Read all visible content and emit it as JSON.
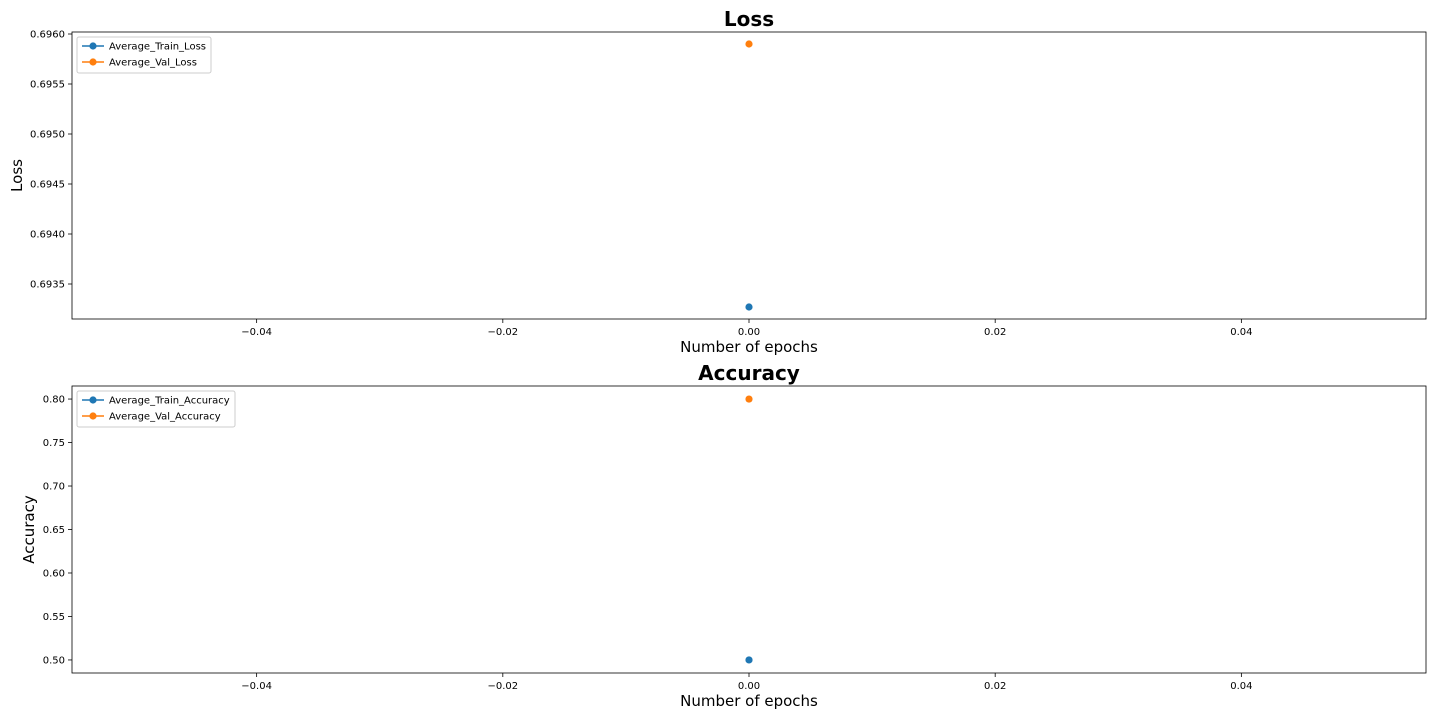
{
  "chart_data": [
    {
      "type": "line",
      "title": "Loss",
      "xlabel": "Number of epochs",
      "ylabel": "Loss",
      "xlim": [
        -0.055,
        0.055
      ],
      "ylim": [
        0.69315,
        0.69602
      ],
      "xticks": [
        -0.04,
        -0.02,
        0.0,
        0.02,
        0.04
      ],
      "xtick_labels": [
        "−0.04",
        "−0.02",
        "0.00",
        "0.02",
        "0.04"
      ],
      "yticks": [
        0.6935,
        0.694,
        0.6945,
        0.695,
        0.6955,
        0.696
      ],
      "ytick_labels": [
        "0.6935",
        "0.6940",
        "0.6945",
        "0.6950",
        "0.6955",
        "0.6960"
      ],
      "grid": false,
      "legend_position": "upper-left",
      "series": [
        {
          "name": "Average_Train_Loss",
          "color": "#1f77b4",
          "x": [
            0
          ],
          "y": [
            0.69327
          ]
        },
        {
          "name": "Average_Val_Loss",
          "color": "#ff7f0e",
          "x": [
            0
          ],
          "y": [
            0.6959
          ]
        }
      ]
    },
    {
      "type": "line",
      "title": "Accuracy",
      "xlabel": "Number of epochs",
      "ylabel": "Accuracy",
      "xlim": [
        -0.055,
        0.055
      ],
      "ylim": [
        0.485,
        0.815
      ],
      "xticks": [
        -0.04,
        -0.02,
        0.0,
        0.02,
        0.04
      ],
      "xtick_labels": [
        "−0.04",
        "−0.02",
        "0.00",
        "0.02",
        "0.04"
      ],
      "yticks": [
        0.5,
        0.55,
        0.6,
        0.65,
        0.7,
        0.75,
        0.8
      ],
      "ytick_labels": [
        "0.50",
        "0.55",
        "0.60",
        "0.65",
        "0.70",
        "0.75",
        "0.80"
      ],
      "grid": false,
      "legend_position": "upper-left",
      "series": [
        {
          "name": "Average_Train_Accuracy",
          "color": "#1f77b4",
          "x": [
            0
          ],
          "y": [
            0.5
          ]
        },
        {
          "name": "Average_Val_Accuracy",
          "color": "#ff7f0e",
          "x": [
            0
          ],
          "y": [
            0.8
          ]
        }
      ]
    }
  ]
}
